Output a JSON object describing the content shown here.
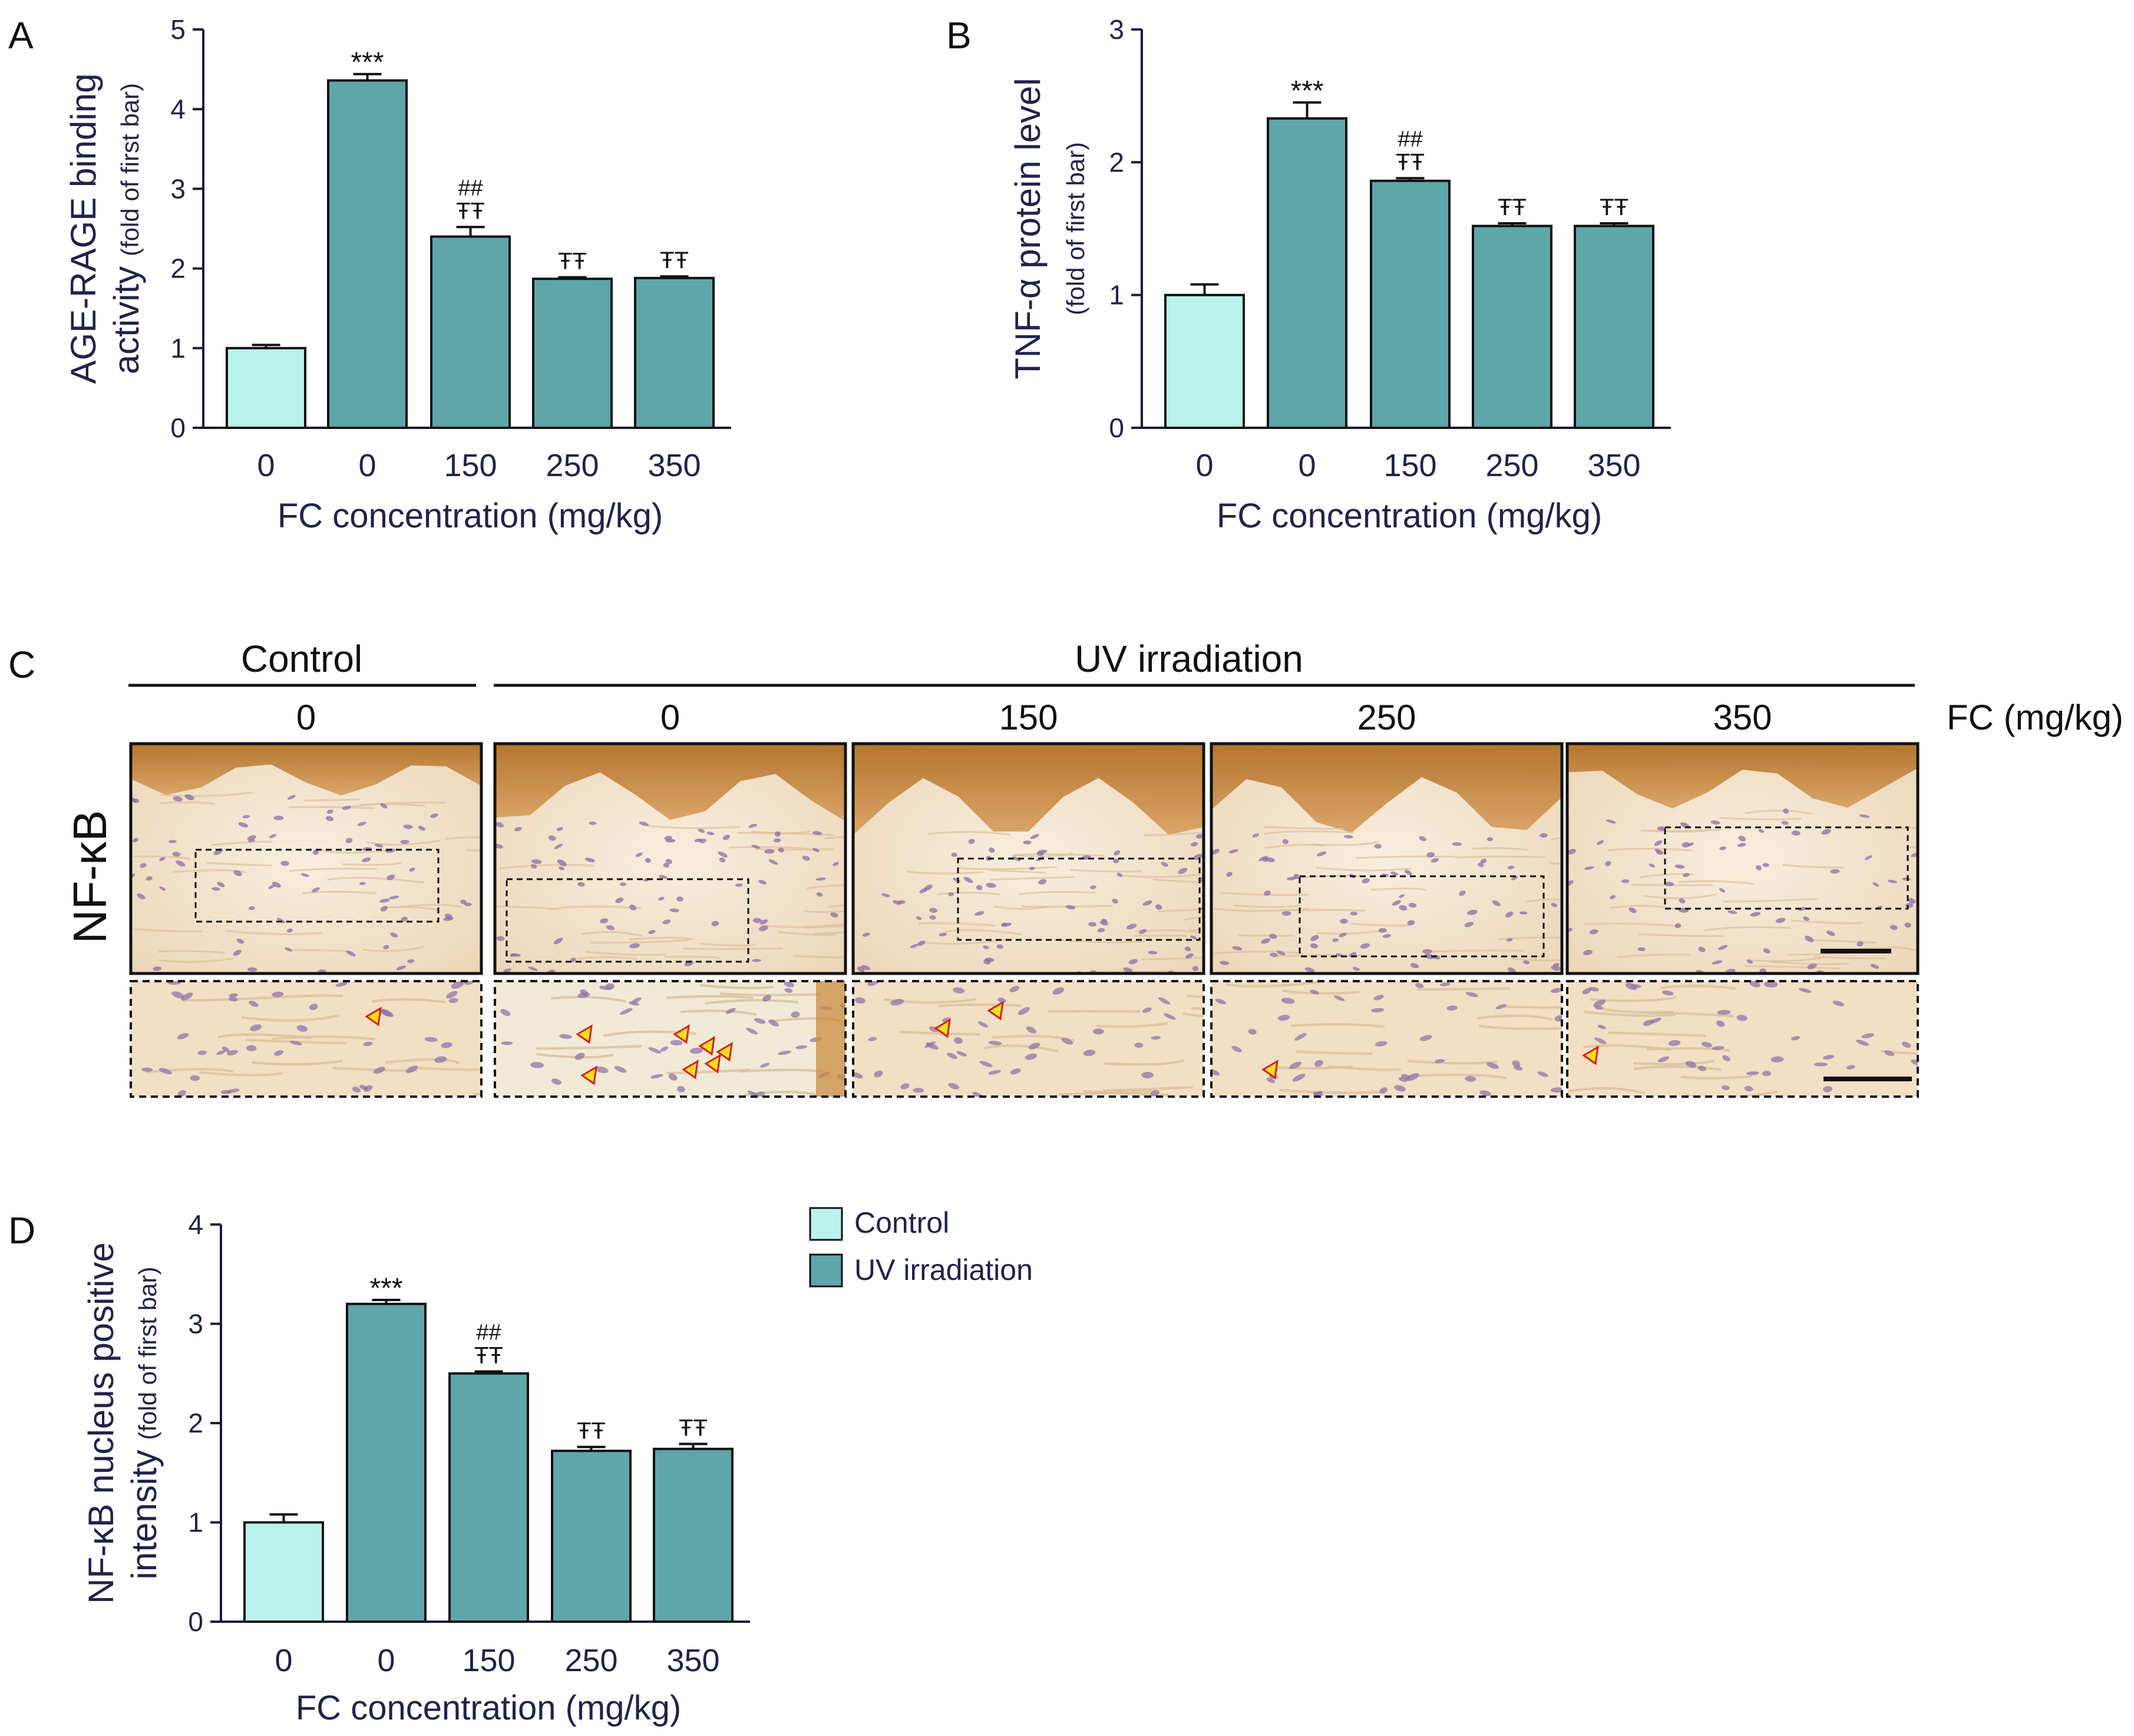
{
  "colors": {
    "control": "#b9f3ec",
    "uv": "#5ea6aa",
    "axis": "#1a1a3a",
    "text": "#22224a",
    "tissue_bg": "#f3e4d0",
    "stain_dark": "#a0641e",
    "stain_light": "#c98b40",
    "nuclei": "#8c6ca8",
    "arrow_fill": "#f1e01a",
    "arrow_stroke": "#d42020"
  },
  "panel_letters": {
    "a": "A",
    "b": "B",
    "c": "C",
    "d": "D"
  },
  "legend": {
    "control": "Control",
    "uv": "UV irradiation"
  },
  "chart_data": [
    {
      "id": "A",
      "type": "bar",
      "ylabel": "AGE-RAGE binding",
      "ylabel2": "activity",
      "ylabel_small": "(fold of first bar)",
      "xlabel": "FC concentration (mg/kg)",
      "categories": [
        "0",
        "0",
        "150",
        "250",
        "350"
      ],
      "groups": [
        "control",
        "uv",
        "uv",
        "uv",
        "uv"
      ],
      "values": [
        1.0,
        4.36,
        2.4,
        1.87,
        1.88
      ],
      "errors": [
        0.04,
        0.08,
        0.12,
        0.02,
        0.02
      ],
      "annot_top": [
        "",
        "***",
        "##",
        "",
        ""
      ],
      "annot_bottom": [
        "",
        "",
        "ŦŦ",
        "ŦŦ",
        "ŦŦ"
      ],
      "ylim": [
        0,
        5
      ],
      "yticks": [
        "0",
        "1",
        "2",
        "3",
        "4",
        "5"
      ]
    },
    {
      "id": "B",
      "type": "bar",
      "ylabel": "TNF-α protein level",
      "ylabel_small": "(fold of first bar)",
      "xlabel": "FC concentration (mg/kg)",
      "categories": [
        "0",
        "0",
        "150",
        "250",
        "350"
      ],
      "groups": [
        "control",
        "uv",
        "uv",
        "uv",
        "uv"
      ],
      "values": [
        1.0,
        2.33,
        1.86,
        1.52,
        1.52
      ],
      "errors": [
        0.08,
        0.12,
        0.02,
        0.02,
        0.02
      ],
      "annot_top": [
        "",
        "***",
        "##",
        "",
        ""
      ],
      "annot_bottom": [
        "",
        "",
        "ŦŦ",
        "ŦŦ",
        "ŦŦ"
      ],
      "ylim": [
        0,
        3
      ],
      "yticks": [
        "0",
        "1",
        "2",
        "3"
      ]
    },
    {
      "id": "D",
      "type": "bar",
      "ylabel": "NF-κB nucleus positive",
      "ylabel2": "intensity",
      "ylabel_small": "(fold of first bar)",
      "xlabel": "FC concentration (mg/kg)",
      "categories": [
        "0",
        "0",
        "150",
        "250",
        "350"
      ],
      "groups": [
        "control",
        "uv",
        "uv",
        "uv",
        "uv"
      ],
      "values": [
        1.0,
        3.2,
        2.5,
        1.72,
        1.74
      ],
      "errors": [
        0.08,
        0.04,
        0.02,
        0.04,
        0.05
      ],
      "annot_top": [
        "",
        "***",
        "##",
        "",
        ""
      ],
      "annot_bottom": [
        "",
        "",
        "ŦŦ",
        "ŦŦ",
        "ŦŦ"
      ],
      "ylim": [
        0,
        4
      ],
      "yticks": [
        "0",
        "1",
        "2",
        "3",
        "4"
      ]
    }
  ],
  "micrographs": {
    "group_control": "Control",
    "group_uv": "UV irradiation",
    "row_label": "NF-κB",
    "fc_label": "FC (mg/kg)",
    "columns": [
      "0",
      "0",
      "150",
      "250",
      "350"
    ]
  }
}
